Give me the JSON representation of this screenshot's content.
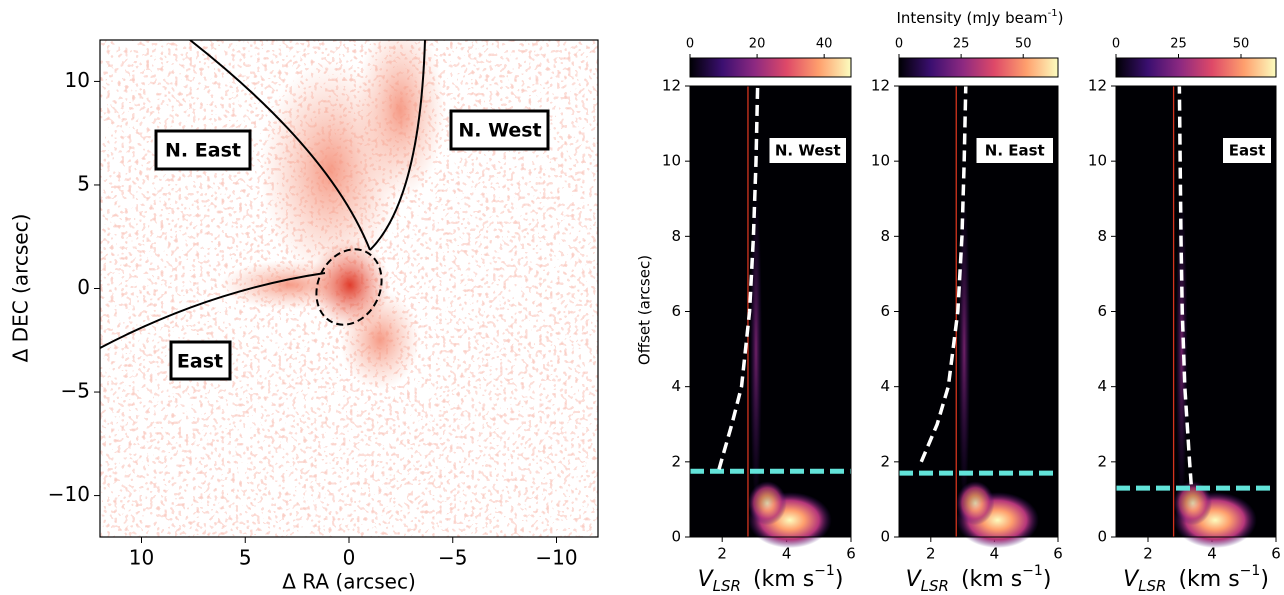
{
  "chart_data": [
    {
      "type": "image",
      "color": "#f2755f",
      "xlabel": "Δ RA (arcsec)",
      "ylabel": "Δ DEC (arcsec)",
      "xlim": [
        12,
        -12
      ],
      "xticks": [
        10,
        5,
        0,
        {
          "value": -5,
          "label": "−5"
        },
        {
          "value": -10,
          "label": "−10"
        }
      ],
      "ylim": [
        -12,
        12
      ],
      "yticks": [
        {
          "value": -10,
          "label": "−10"
        },
        {
          "value": -5,
          "label": "−5"
        },
        0,
        5,
        10
      ],
      "regions": [
        "N. East",
        "N. West",
        "East"
      ]
    },
    {
      "type": "pv",
      "label": "N. West",
      "colorbar_label": [
        "Intensity (mJy beam",
        "-1",
        ")"
      ],
      "ylabel": "Offset (arcsec)",
      "xlabel": [
        "V",
        "LSR",
        "(km s",
        "−1",
        ")"
      ],
      "xlim": [
        1,
        6
      ],
      "xticks": [
        2,
        4,
        6
      ],
      "ylim": [
        0,
        12
      ],
      "yticks": [
        0,
        2,
        4,
        6,
        8,
        10,
        12
      ],
      "cbar_lim": [
        0,
        48
      ],
      "cbar_ticks": [
        0,
        20,
        40
      ],
      "colors": [
        "#000004",
        "#3b0f70",
        "#8c2981",
        "#de4968",
        "#fe9f6d",
        "#fcfdbf"
      ],
      "vline": 2.8,
      "hline": 1.75,
      "curve": {
        "x": [
          1.9,
          2.3,
          2.6,
          2.85,
          2.97,
          3.05,
          3.1
        ],
        "y": [
          1.8,
          3,
          4,
          6,
          8,
          10,
          12
        ]
      }
    },
    {
      "type": "pv",
      "label": "N. East",
      "xlabel": [
        "V",
        "LSR",
        "(km s",
        "−1",
        ")"
      ],
      "xlim": [
        1,
        6
      ],
      "xticks": [
        2,
        4,
        6
      ],
      "ylim": [
        0,
        12
      ],
      "yticks": [
        0,
        2,
        4,
        6,
        8,
        10,
        12
      ],
      "cbar_lim": [
        0,
        64
      ],
      "cbar_ticks": [
        0,
        25,
        50
      ],
      "colors": [
        "#000004",
        "#3b0f70",
        "#8c2981",
        "#de4968",
        "#fe9f6d",
        "#fcfdbf"
      ],
      "vline": 2.8,
      "hline": 1.7,
      "curve": {
        "x": [
          1.7,
          2.2,
          2.55,
          2.85,
          2.98,
          3.05,
          3.1
        ],
        "y": [
          2,
          3,
          4,
          6,
          8,
          10,
          12
        ]
      }
    },
    {
      "type": "pv",
      "label": "East",
      "xlabel": [
        "V",
        "LSR",
        "(km s",
        "−1",
        ")"
      ],
      "xlim": [
        1,
        6
      ],
      "xticks": [
        2,
        4,
        6
      ],
      "ylim": [
        0,
        12
      ],
      "yticks": [
        0,
        2,
        4,
        6,
        8,
        10,
        12
      ],
      "cbar_lim": [
        0,
        64
      ],
      "cbar_ticks": [
        0,
        25,
        50
      ],
      "colors": [
        "#000004",
        "#3b0f70",
        "#8c2981",
        "#de4968",
        "#fe9f6d",
        "#fcfdbf"
      ],
      "vline": 2.8,
      "hline": 1.3,
      "curve": {
        "x": [
          3.35,
          3.3,
          3.15,
          3.07,
          3.03,
          2.98
        ],
        "y": [
          1.4,
          2,
          4,
          6,
          8,
          12
        ]
      }
    }
  ]
}
